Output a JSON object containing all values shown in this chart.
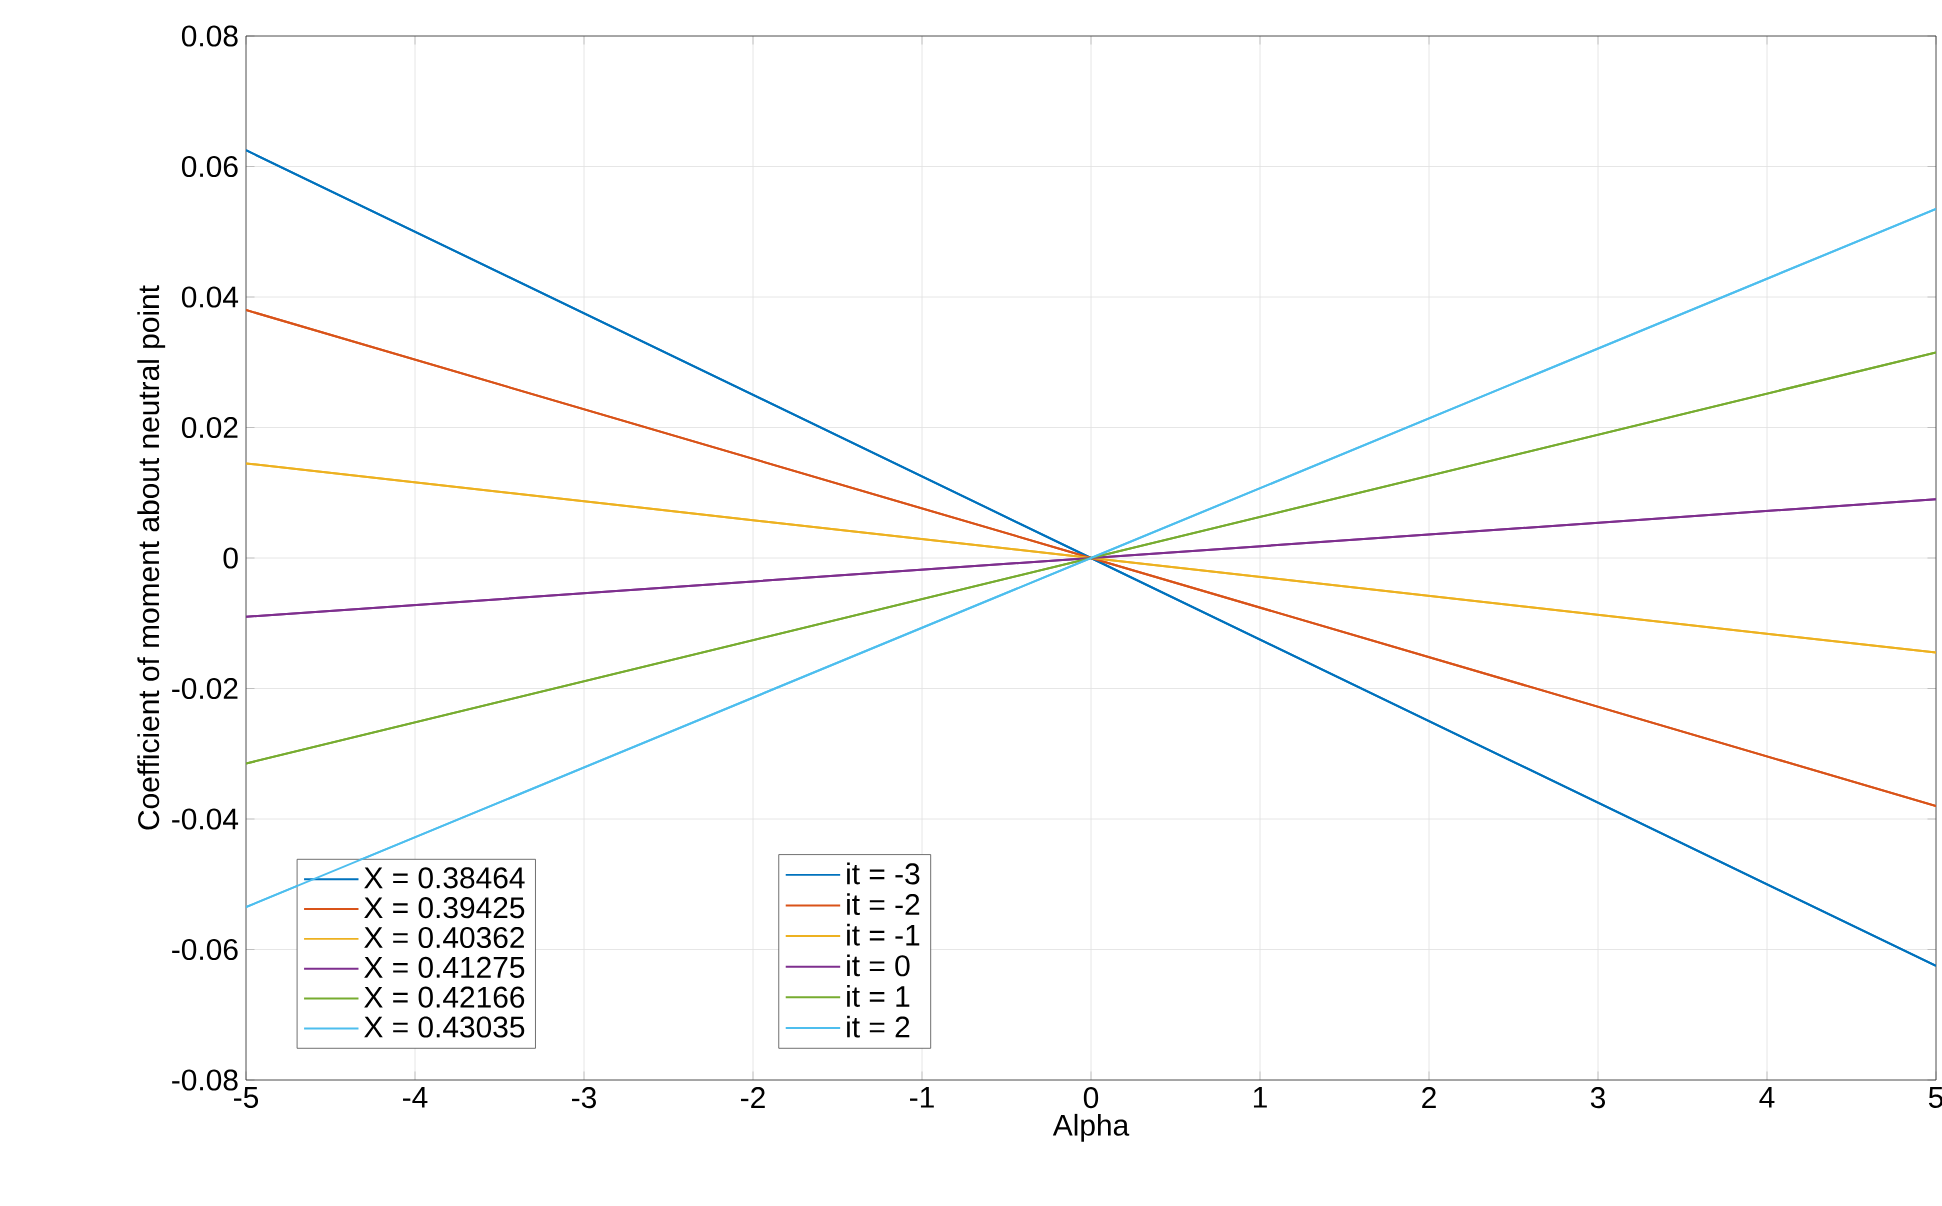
{
  "chart_data": {
    "type": "line",
    "xlabel": "Alpha",
    "ylabel": "Coefficient of moment about neutral point",
    "x": [
      -5,
      0,
      5
    ],
    "series": [
      {
        "name": "X = 0.38464",
        "color": "#0072bd",
        "values": [
          0.0625,
          0,
          -0.0625
        ]
      },
      {
        "name": "X = 0.39425",
        "color": "#d95319",
        "values": [
          0.038,
          0,
          -0.038
        ]
      },
      {
        "name": "X = 0.40362",
        "color": "#edb120",
        "values": [
          0.0145,
          0,
          -0.0145
        ]
      },
      {
        "name": "X = 0.41275",
        "color": "#7e2f8e",
        "values": [
          -0.009,
          0,
          0.009
        ]
      },
      {
        "name": "X = 0.42166",
        "color": "#77ac30",
        "values": [
          -0.0315,
          0,
          0.0315
        ]
      },
      {
        "name": "X = 0.43035",
        "color": "#4dbeee",
        "values": [
          -0.0535,
          0,
          0.0535
        ]
      },
      {
        "name": "it = -3",
        "color": "#0072bd",
        "values": [
          0.0625,
          0,
          -0.0625
        ]
      },
      {
        "name": "it = -2",
        "color": "#d95319",
        "values": [
          0.038,
          0,
          -0.038
        ]
      },
      {
        "name": "it = -1",
        "color": "#edb120",
        "values": [
          0.0145,
          0,
          -0.0145
        ]
      },
      {
        "name": "it = 0",
        "color": "#7e2f8e",
        "values": [
          -0.009,
          0,
          0.009
        ]
      },
      {
        "name": "it = 1",
        "color": "#77ac30",
        "values": [
          -0.0315,
          0,
          0.0315
        ]
      },
      {
        "name": "it = 2",
        "color": "#4dbeee",
        "values": [
          -0.0535,
          0,
          0.0535
        ]
      }
    ],
    "xlim": [
      -5,
      5
    ],
    "ylim": [
      -0.08,
      0.08
    ],
    "xticks": [
      -5,
      -4,
      -3,
      -2,
      -1,
      0,
      1,
      2,
      3,
      4,
      5
    ],
    "yticks": [
      -0.08,
      -0.06,
      -0.04,
      -0.02,
      0,
      0.02,
      0.04,
      0.06,
      0.08
    ],
    "grid": true,
    "legend": "bottom left",
    "line_style": "solid",
    "marker": "none"
  }
}
